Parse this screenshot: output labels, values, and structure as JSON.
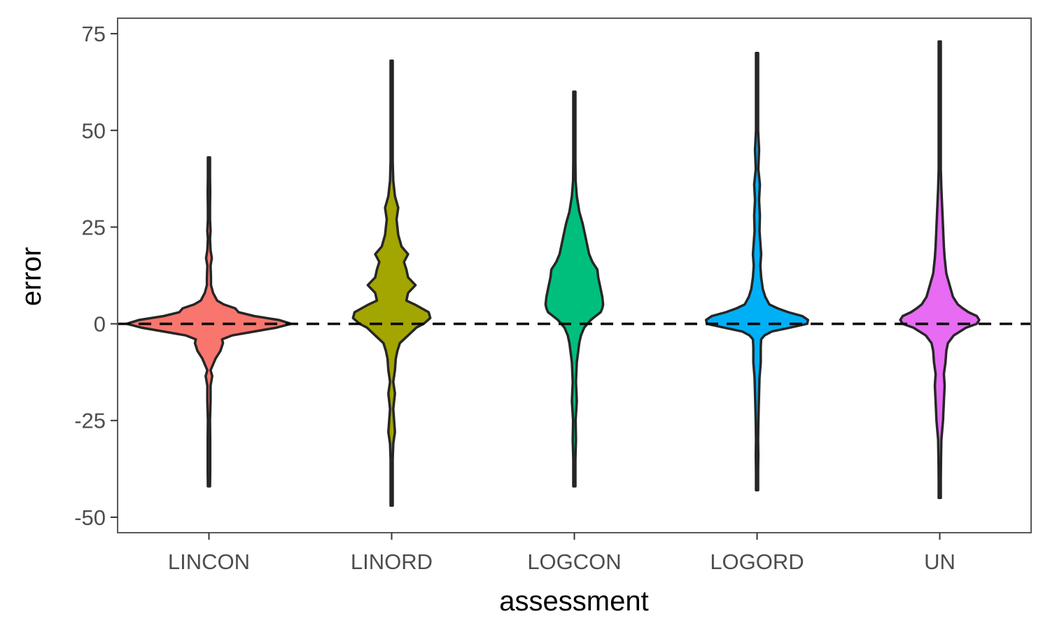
{
  "chart_data": {
    "type": "violin",
    "xlabel": "assessment",
    "ylabel": "error",
    "ylim": [
      -54,
      79
    ],
    "yticks": [
      75,
      50,
      25,
      0,
      -25,
      -50
    ],
    "ytick_labels": [
      "75",
      "50",
      "25",
      "0",
      "-25",
      "-50"
    ],
    "reference_line": {
      "y": 0,
      "style": "dashed",
      "color": "#000000"
    },
    "grid": false,
    "legend": "none",
    "categories": [
      "LINCON",
      "LINORD",
      "LOGCON",
      "LOGORD",
      "UN"
    ],
    "series": [
      {
        "category": "LINCON",
        "color": "#F8766D",
        "min": -42,
        "max": 43,
        "profile": [
          [
            -42,
            0.01
          ],
          [
            -38,
            0.015
          ],
          [
            -30,
            0.015
          ],
          [
            -25,
            0.01
          ],
          [
            -20,
            0.02
          ],
          [
            -16,
            0.02
          ],
          [
            -13.5,
            0.04
          ],
          [
            -12,
            0.02
          ],
          [
            -10.5,
            0.05
          ],
          [
            -9,
            0.08
          ],
          [
            -7,
            0.14
          ],
          [
            -5,
            0.17
          ],
          [
            -4,
            0.16
          ],
          [
            -3,
            0.28
          ],
          [
            -2,
            0.55
          ],
          [
            -1,
            0.82
          ],
          [
            0,
            1.0
          ],
          [
            1,
            0.85
          ],
          [
            2,
            0.55
          ],
          [
            3,
            0.36
          ],
          [
            4,
            0.32
          ],
          [
            5,
            0.18
          ],
          [
            6,
            0.1
          ],
          [
            8,
            0.05
          ],
          [
            10,
            0.025
          ],
          [
            12,
            0.025
          ],
          [
            15,
            0.02
          ],
          [
            17,
            0.035
          ],
          [
            19,
            0.02
          ],
          [
            22,
            0.01
          ],
          [
            24,
            0.02
          ],
          [
            27,
            0.01
          ],
          [
            30,
            0.01
          ],
          [
            34,
            0.015
          ],
          [
            38,
            0.008
          ],
          [
            43,
            0.008
          ]
        ]
      },
      {
        "category": "LINORD",
        "color": "#A3A500",
        "min": -47,
        "max": 68,
        "profile": [
          [
            -47,
            0.008
          ],
          [
            -40,
            0.01
          ],
          [
            -35,
            0.012
          ],
          [
            -31,
            0.02
          ],
          [
            -28,
            0.04
          ],
          [
            -25,
            0.03
          ],
          [
            -22,
            0.02
          ],
          [
            -18,
            0.04
          ],
          [
            -15,
            0.02
          ],
          [
            -12,
            0.04
          ],
          [
            -9,
            0.05
          ],
          [
            -7,
            0.07
          ],
          [
            -5,
            0.1
          ],
          [
            -3,
            0.2
          ],
          [
            -1,
            0.3
          ],
          [
            0,
            0.39
          ],
          [
            1.5,
            0.47
          ],
          [
            3,
            0.45
          ],
          [
            5,
            0.28
          ],
          [
            6,
            0.18
          ],
          [
            8,
            0.2
          ],
          [
            10,
            0.29
          ],
          [
            12,
            0.2
          ],
          [
            14,
            0.18
          ],
          [
            16,
            0.15
          ],
          [
            18,
            0.2
          ],
          [
            20,
            0.12
          ],
          [
            23,
            0.08
          ],
          [
            27,
            0.06
          ],
          [
            30,
            0.08
          ],
          [
            33,
            0.04
          ],
          [
            37,
            0.02
          ],
          [
            42,
            0.01
          ],
          [
            50,
            0.008
          ],
          [
            60,
            0.008
          ],
          [
            68,
            0.008
          ]
        ]
      },
      {
        "category": "LOGCON",
        "color": "#00BF7D",
        "min": -42,
        "max": 60,
        "profile": [
          [
            -42,
            0.008
          ],
          [
            -35,
            0.01
          ],
          [
            -30,
            0.02
          ],
          [
            -25,
            0.015
          ],
          [
            -20,
            0.03
          ],
          [
            -15,
            0.02
          ],
          [
            -10,
            0.03
          ],
          [
            -5,
            0.06
          ],
          [
            -3,
            0.08
          ],
          [
            -1,
            0.12
          ],
          [
            0,
            0.16
          ],
          [
            1,
            0.2
          ],
          [
            2,
            0.26
          ],
          [
            3,
            0.32
          ],
          [
            4,
            0.34
          ],
          [
            5,
            0.35
          ],
          [
            7,
            0.34
          ],
          [
            9,
            0.32
          ],
          [
            12,
            0.29
          ],
          [
            14,
            0.28
          ],
          [
            16,
            0.22
          ],
          [
            18,
            0.18
          ],
          [
            20,
            0.16
          ],
          [
            23,
            0.13
          ],
          [
            26,
            0.1
          ],
          [
            29,
            0.06
          ],
          [
            33,
            0.03
          ],
          [
            37,
            0.015
          ],
          [
            42,
            0.012
          ],
          [
            50,
            0.008
          ],
          [
            60,
            0.008
          ]
        ]
      },
      {
        "category": "LOGORD",
        "color": "#00B0F6",
        "min": -43,
        "max": 70,
        "profile": [
          [
            -43,
            0.008
          ],
          [
            -38,
            0.01
          ],
          [
            -34,
            0.015
          ],
          [
            -30,
            0.01
          ],
          [
            -26,
            0.015
          ],
          [
            -22,
            0.02
          ],
          [
            -18,
            0.025
          ],
          [
            -14,
            0.03
          ],
          [
            -10,
            0.045
          ],
          [
            -6,
            0.045
          ],
          [
            -4,
            0.05
          ],
          [
            -3,
            0.09
          ],
          [
            -2,
            0.18
          ],
          [
            -1,
            0.4
          ],
          [
            0,
            0.61
          ],
          [
            1,
            0.62
          ],
          [
            2,
            0.55
          ],
          [
            3,
            0.38
          ],
          [
            4,
            0.25
          ],
          [
            5,
            0.15
          ],
          [
            7,
            0.1
          ],
          [
            9,
            0.07
          ],
          [
            12,
            0.05
          ],
          [
            15,
            0.04
          ],
          [
            18,
            0.05
          ],
          [
            21,
            0.04
          ],
          [
            24,
            0.03
          ],
          [
            28,
            0.035
          ],
          [
            32,
            0.025
          ],
          [
            36,
            0.035
          ],
          [
            40,
            0.015
          ],
          [
            45,
            0.025
          ],
          [
            50,
            0.01
          ],
          [
            60,
            0.008
          ],
          [
            70,
            0.008
          ]
        ]
      },
      {
        "category": "UN",
        "color": "#E76BF3",
        "min": -45,
        "max": 73,
        "profile": [
          [
            -45,
            0.008
          ],
          [
            -40,
            0.01
          ],
          [
            -35,
            0.015
          ],
          [
            -30,
            0.02
          ],
          [
            -25,
            0.04
          ],
          [
            -20,
            0.05
          ],
          [
            -16,
            0.06
          ],
          [
            -13,
            0.05
          ],
          [
            -10,
            0.07
          ],
          [
            -7,
            0.08
          ],
          [
            -5,
            0.1
          ],
          [
            -3,
            0.17
          ],
          [
            -1,
            0.32
          ],
          [
            0,
            0.45
          ],
          [
            1,
            0.48
          ],
          [
            2,
            0.45
          ],
          [
            3,
            0.35
          ],
          [
            4,
            0.28
          ],
          [
            5,
            0.22
          ],
          [
            7,
            0.16
          ],
          [
            10,
            0.12
          ],
          [
            13,
            0.08
          ],
          [
            17,
            0.06
          ],
          [
            20,
            0.05
          ],
          [
            25,
            0.04
          ],
          [
            30,
            0.03
          ],
          [
            35,
            0.02
          ],
          [
            40,
            0.01
          ],
          [
            50,
            0.008
          ],
          [
            60,
            0.008
          ],
          [
            73,
            0.008
          ]
        ]
      }
    ]
  }
}
